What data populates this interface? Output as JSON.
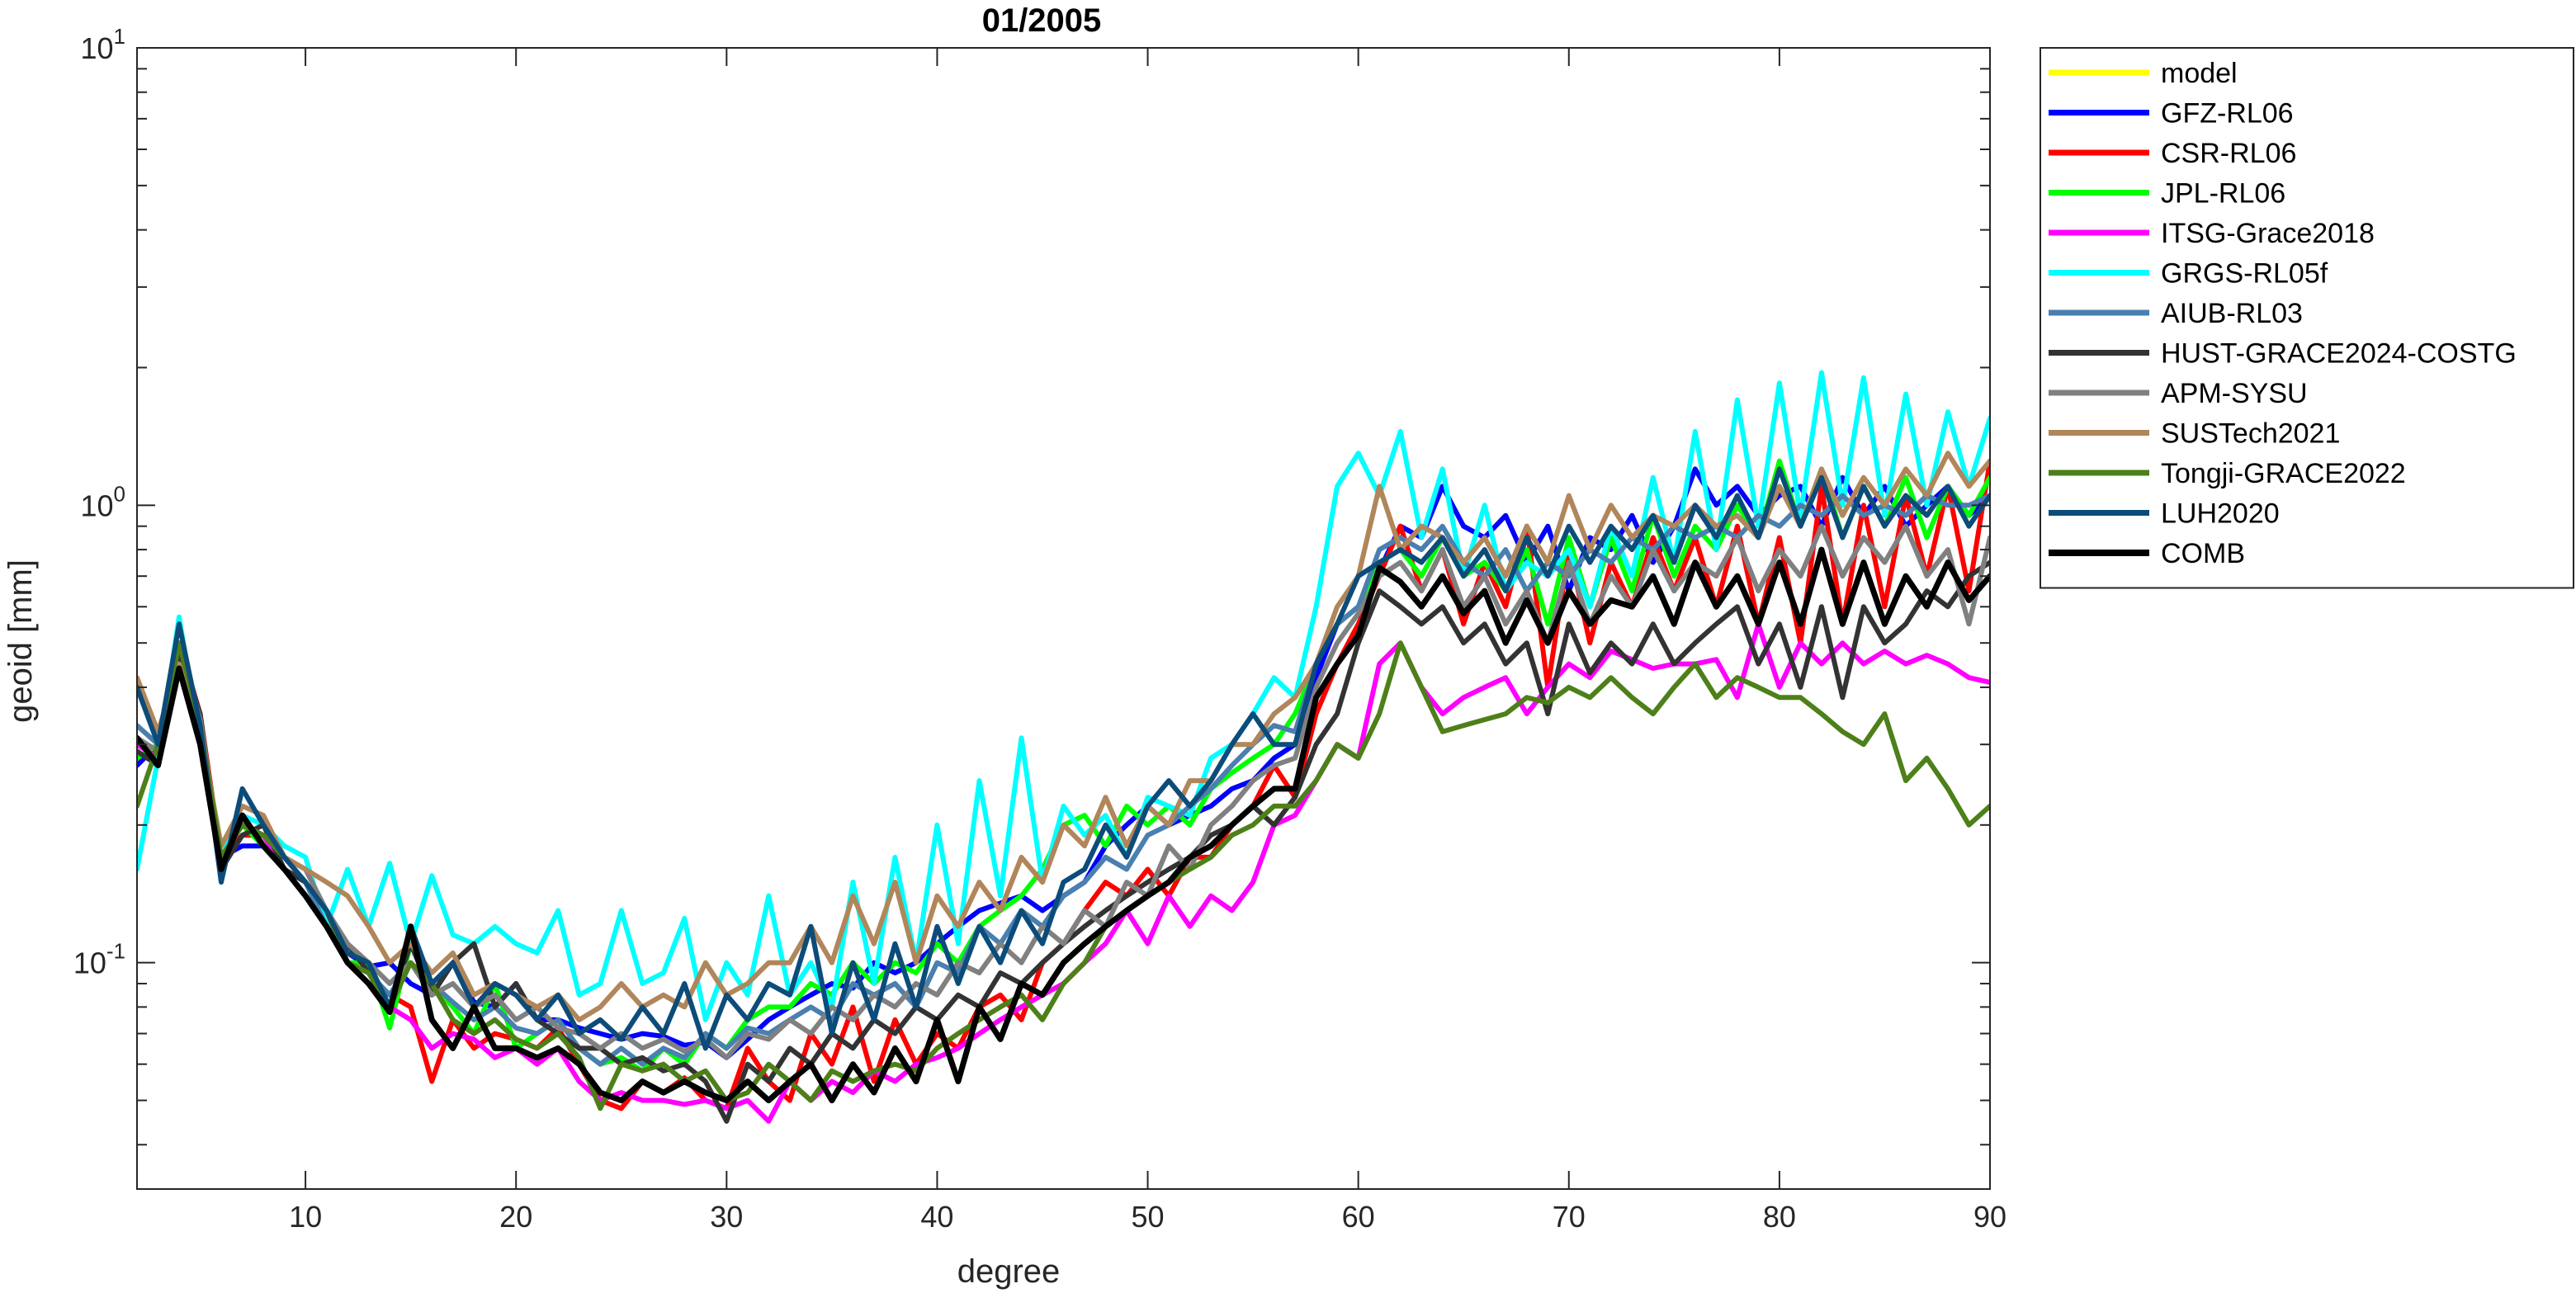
{
  "chart_data": {
    "type": "line",
    "title": "01/2005",
    "xlabel": "degree",
    "ylabel": "geoid [mm]",
    "xlim": [
      2,
      90
    ],
    "ylim": [
      0.032,
      10
    ],
    "yscale": "log",
    "grid": false,
    "legend_position": "outside-right-top",
    "x_ticks": [
      10,
      20,
      30,
      40,
      50,
      60,
      70,
      80,
      90
    ],
    "y_ticks": [
      {
        "value": 0.1,
        "base": "10",
        "exponent": "-1"
      },
      {
        "value": 1,
        "base": "10",
        "exponent": "0"
      },
      {
        "value": 10,
        "base": "10",
        "exponent": "1"
      }
    ],
    "series": [
      {
        "name": "model",
        "color": "#ffff00",
        "width": 6,
        "x_start": 2,
        "values": []
      },
      {
        "name": "GFZ-RL06",
        "color": "#0000ff",
        "width": 6,
        "x_start": 2,
        "values": [
          0.27,
          0.3,
          0.5,
          0.34,
          0.17,
          0.18,
          0.18,
          0.17,
          0.15,
          0.13,
          0.105,
          0.098,
          0.1,
          0.09,
          0.085,
          0.1,
          0.082,
          0.08,
          0.09,
          0.075,
          0.075,
          0.072,
          0.07,
          0.068,
          0.07,
          0.069,
          0.066,
          0.067,
          0.062,
          0.068,
          0.075,
          0.08,
          0.085,
          0.09,
          0.088,
          0.1,
          0.095,
          0.1,
          0.11,
          0.12,
          0.13,
          0.135,
          0.14,
          0.13,
          0.14,
          0.15,
          0.18,
          0.2,
          0.22,
          0.2,
          0.21,
          0.22,
          0.24,
          0.25,
          0.28,
          0.3,
          0.42,
          0.55,
          0.6,
          0.72,
          0.9,
          0.85,
          1.1,
          0.9,
          0.85,
          0.95,
          0.75,
          0.9,
          0.65,
          0.85,
          0.8,
          0.95,
          0.75,
          0.9,
          1.2,
          1.0,
          1.1,
          0.95,
          1.05,
          1.1,
          0.9,
          1.15,
          0.95,
          1.1,
          0.9,
          1.0,
          1.1,
          0.95,
          1.05
        ]
      },
      {
        "name": "CSR-RL06",
        "color": "#ff0000",
        "width": 6,
        "x_start": 2,
        "values": [
          0.3,
          0.28,
          0.5,
          0.35,
          0.17,
          0.19,
          0.19,
          0.16,
          0.14,
          0.12,
          0.1,
          0.09,
          0.085,
          0.08,
          0.055,
          0.075,
          0.065,
          0.07,
          0.068,
          0.065,
          0.072,
          0.06,
          0.05,
          0.048,
          0.055,
          0.052,
          0.056,
          0.05,
          0.048,
          0.065,
          0.055,
          0.05,
          0.07,
          0.06,
          0.08,
          0.055,
          0.075,
          0.06,
          0.07,
          0.065,
          0.08,
          0.085,
          0.075,
          0.1,
          0.11,
          0.13,
          0.15,
          0.14,
          0.16,
          0.14,
          0.17,
          0.17,
          0.2,
          0.22,
          0.27,
          0.23,
          0.35,
          0.45,
          0.55,
          0.7,
          0.9,
          0.65,
          0.8,
          0.55,
          0.75,
          0.6,
          0.9,
          0.4,
          0.8,
          0.5,
          0.75,
          0.6,
          0.85,
          0.65,
          0.85,
          0.6,
          0.9,
          0.55,
          0.85,
          0.5,
          1.1,
          0.55,
          1.0,
          0.6,
          1.05,
          0.7,
          1.1,
          0.65,
          1.25
        ]
      },
      {
        "name": "JPL-RL06",
        "color": "#00ff00",
        "width": 6,
        "x_start": 2,
        "values": [
          0.28,
          0.3,
          0.48,
          0.32,
          0.18,
          0.2,
          0.18,
          0.16,
          0.15,
          0.13,
          0.1,
          0.1,
          0.072,
          0.11,
          0.09,
          0.08,
          0.07,
          0.09,
          0.065,
          0.07,
          0.075,
          0.065,
          0.06,
          0.062,
          0.058,
          0.065,
          0.06,
          0.07,
          0.065,
          0.075,
          0.08,
          0.08,
          0.09,
          0.085,
          0.1,
          0.09,
          0.1,
          0.095,
          0.11,
          0.1,
          0.12,
          0.13,
          0.14,
          0.16,
          0.2,
          0.21,
          0.18,
          0.22,
          0.2,
          0.22,
          0.2,
          0.24,
          0.26,
          0.28,
          0.3,
          0.35,
          0.45,
          0.55,
          0.6,
          0.75,
          0.8,
          0.7,
          0.85,
          0.7,
          0.75,
          0.65,
          0.8,
          0.55,
          0.85,
          0.6,
          0.85,
          0.65,
          0.95,
          0.7,
          0.9,
          0.8,
          1.0,
          0.85,
          1.25,
          0.9,
          1.2,
          0.85,
          1.1,
          0.9,
          1.15,
          0.85,
          1.1,
          0.95,
          1.15
        ]
      },
      {
        "name": "ITSG-Grace2018",
        "color": "#ff00ff",
        "width": 6,
        "x_start": 2,
        "values": [
          0.3,
          0.28,
          0.48,
          0.33,
          0.17,
          0.2,
          0.19,
          0.16,
          0.15,
          0.13,
          0.1,
          0.09,
          0.08,
          0.075,
          0.065,
          0.07,
          0.068,
          0.062,
          0.065,
          0.06,
          0.065,
          0.055,
          0.05,
          0.052,
          0.05,
          0.05,
          0.049,
          0.05,
          0.048,
          0.05,
          0.045,
          0.055,
          0.05,
          0.055,
          0.052,
          0.058,
          0.055,
          0.06,
          0.062,
          0.065,
          0.07,
          0.075,
          0.08,
          0.085,
          0.09,
          0.1,
          0.11,
          0.13,
          0.11,
          0.14,
          0.12,
          0.14,
          0.13,
          0.15,
          0.2,
          0.21,
          0.25,
          0.3,
          0.28,
          0.45,
          0.5,
          0.4,
          0.35,
          0.38,
          0.4,
          0.42,
          0.35,
          0.4,
          0.45,
          0.42,
          0.48,
          0.46,
          0.44,
          0.45,
          0.45,
          0.46,
          0.38,
          0.55,
          0.4,
          0.5,
          0.45,
          0.5,
          0.45,
          0.48,
          0.45,
          0.47,
          0.45,
          0.42,
          0.41
        ]
      },
      {
        "name": "GRGS-RL05f",
        "color": "#00ffff",
        "width": 6,
        "x_start": 2,
        "values": [
          0.16,
          0.28,
          0.57,
          0.3,
          0.17,
          0.21,
          0.2,
          0.18,
          0.17,
          0.12,
          0.16,
          0.12,
          0.165,
          0.11,
          0.155,
          0.115,
          0.11,
          0.12,
          0.11,
          0.105,
          0.13,
          0.085,
          0.09,
          0.13,
          0.09,
          0.095,
          0.125,
          0.075,
          0.1,
          0.085,
          0.14,
          0.085,
          0.1,
          0.08,
          0.15,
          0.09,
          0.17,
          0.1,
          0.2,
          0.11,
          0.25,
          0.14,
          0.31,
          0.15,
          0.22,
          0.19,
          0.21,
          0.17,
          0.23,
          0.22,
          0.21,
          0.28,
          0.3,
          0.35,
          0.42,
          0.38,
          0.6,
          1.1,
          1.3,
          1.05,
          1.45,
          0.85,
          1.2,
          0.7,
          1.0,
          0.65,
          0.75,
          0.7,
          0.8,
          0.6,
          0.9,
          0.7,
          1.15,
          0.75,
          1.45,
          0.8,
          1.7,
          0.9,
          1.85,
          0.95,
          1.95,
          1.0,
          1.9,
          0.95,
          1.75,
          1.0,
          1.6,
          1.1,
          1.55
        ]
      },
      {
        "name": "AIUB-RL03",
        "color": "#4a7fb0",
        "width": 6,
        "x_start": 2,
        "values": [
          0.33,
          0.3,
          0.5,
          0.33,
          0.17,
          0.2,
          0.19,
          0.17,
          0.15,
          0.12,
          0.1,
          0.095,
          0.085,
          0.1,
          0.09,
          0.082,
          0.075,
          0.08,
          0.072,
          0.07,
          0.075,
          0.065,
          0.06,
          0.065,
          0.06,
          0.065,
          0.062,
          0.07,
          0.065,
          0.072,
          0.07,
          0.075,
          0.08,
          0.075,
          0.09,
          0.085,
          0.09,
          0.08,
          0.1,
          0.095,
          0.12,
          0.11,
          0.13,
          0.12,
          0.14,
          0.15,
          0.17,
          0.16,
          0.19,
          0.2,
          0.22,
          0.24,
          0.27,
          0.3,
          0.33,
          0.32,
          0.45,
          0.55,
          0.6,
          0.8,
          0.85,
          0.8,
          0.9,
          0.75,
          0.7,
          0.8,
          0.65,
          0.75,
          0.7,
          0.8,
          0.75,
          0.85,
          0.8,
          0.9,
          0.85,
          0.9,
          0.85,
          0.95,
          0.9,
          1.0,
          0.95,
          1.05,
          0.95,
          1.0,
          0.95,
          1.05,
          1.0,
          1.0,
          1.05
        ]
      },
      {
        "name": "HUST-GRACE2024-COSTG",
        "color": "#333333",
        "width": 6,
        "x_start": 2,
        "values": [
          0.29,
          0.27,
          0.48,
          0.35,
          0.16,
          0.19,
          0.2,
          0.16,
          0.15,
          0.13,
          0.11,
          0.095,
          0.08,
          0.11,
          0.085,
          0.1,
          0.11,
          0.08,
          0.09,
          0.075,
          0.07,
          0.065,
          0.065,
          0.06,
          0.062,
          0.058,
          0.06,
          0.055,
          0.045,
          0.06,
          0.055,
          0.065,
          0.06,
          0.07,
          0.065,
          0.075,
          0.07,
          0.08,
          0.075,
          0.085,
          0.08,
          0.095,
          0.09,
          0.1,
          0.11,
          0.12,
          0.13,
          0.14,
          0.15,
          0.16,
          0.17,
          0.19,
          0.2,
          0.22,
          0.2,
          0.23,
          0.3,
          0.35,
          0.5,
          0.65,
          0.6,
          0.55,
          0.6,
          0.5,
          0.55,
          0.45,
          0.5,
          0.35,
          0.55,
          0.43,
          0.5,
          0.45,
          0.55,
          0.45,
          0.5,
          0.55,
          0.6,
          0.45,
          0.55,
          0.4,
          0.6,
          0.38,
          0.6,
          0.5,
          0.55,
          0.65,
          0.6,
          0.7,
          0.75
        ]
      },
      {
        "name": "APM-SYSU",
        "color": "#808080",
        "width": 6,
        "x_start": 2,
        "values": [
          0.31,
          0.29,
          0.5,
          0.34,
          0.17,
          0.2,
          0.19,
          0.17,
          0.16,
          0.13,
          0.11,
          0.1,
          0.09,
          0.1,
          0.085,
          0.09,
          0.08,
          0.085,
          0.075,
          0.08,
          0.072,
          0.07,
          0.065,
          0.07,
          0.065,
          0.068,
          0.064,
          0.068,
          0.062,
          0.07,
          0.068,
          0.075,
          0.07,
          0.08,
          0.075,
          0.085,
          0.08,
          0.09,
          0.085,
          0.1,
          0.095,
          0.11,
          0.1,
          0.12,
          0.11,
          0.13,
          0.12,
          0.15,
          0.14,
          0.18,
          0.16,
          0.2,
          0.22,
          0.25,
          0.27,
          0.28,
          0.4,
          0.5,
          0.58,
          0.7,
          0.75,
          0.65,
          0.8,
          0.6,
          0.7,
          0.55,
          0.65,
          0.5,
          0.75,
          0.55,
          0.7,
          0.6,
          0.8,
          0.65,
          0.75,
          0.7,
          0.85,
          0.65,
          0.8,
          0.7,
          0.9,
          0.7,
          0.85,
          0.75,
          0.9,
          0.7,
          0.8,
          0.55,
          0.85
        ]
      },
      {
        "name": "SUSTech2021",
        "color": "#b0865a",
        "width": 6,
        "x_start": 2,
        "values": [
          0.42,
          0.32,
          0.45,
          0.32,
          0.18,
          0.22,
          0.21,
          0.17,
          0.16,
          0.15,
          0.14,
          0.12,
          0.1,
          0.11,
          0.095,
          0.105,
          0.085,
          0.09,
          0.085,
          0.08,
          0.085,
          0.075,
          0.08,
          0.09,
          0.08,
          0.085,
          0.08,
          0.1,
          0.085,
          0.09,
          0.1,
          0.1,
          0.12,
          0.1,
          0.14,
          0.11,
          0.15,
          0.1,
          0.14,
          0.12,
          0.15,
          0.13,
          0.17,
          0.15,
          0.2,
          0.18,
          0.23,
          0.18,
          0.22,
          0.2,
          0.25,
          0.25,
          0.3,
          0.3,
          0.35,
          0.38,
          0.45,
          0.6,
          0.7,
          1.1,
          0.8,
          0.9,
          0.85,
          0.75,
          0.85,
          0.7,
          0.9,
          0.75,
          1.05,
          0.8,
          1.0,
          0.85,
          0.95,
          0.9,
          1.0,
          0.9,
          0.95,
          0.85,
          1.1,
          0.9,
          1.2,
          0.95,
          1.15,
          1.0,
          1.2,
          1.05,
          1.3,
          1.1,
          1.25
        ]
      },
      {
        "name": "Tongji-GRACE2022",
        "color": "#4d8019",
        "width": 6,
        "x_start": 2,
        "values": [
          0.22,
          0.3,
          0.5,
          0.33,
          0.17,
          0.2,
          0.19,
          0.17,
          0.15,
          0.13,
          0.1,
          0.095,
          0.08,
          0.1,
          0.09,
          0.075,
          0.07,
          0.075,
          0.068,
          0.065,
          0.07,
          0.062,
          0.048,
          0.06,
          0.058,
          0.06,
          0.055,
          0.058,
          0.05,
          0.052,
          0.06,
          0.055,
          0.05,
          0.058,
          0.055,
          0.058,
          0.06,
          0.058,
          0.065,
          0.07,
          0.075,
          0.08,
          0.085,
          0.075,
          0.09,
          0.1,
          0.12,
          0.13,
          0.14,
          0.15,
          0.16,
          0.17,
          0.19,
          0.2,
          0.22,
          0.22,
          0.25,
          0.3,
          0.28,
          0.35,
          0.5,
          0.4,
          0.32,
          0.33,
          0.34,
          0.35,
          0.38,
          0.37,
          0.4,
          0.38,
          0.42,
          0.38,
          0.35,
          0.4,
          0.45,
          0.38,
          0.42,
          0.4,
          0.38,
          0.38,
          0.35,
          0.32,
          0.3,
          0.35,
          0.25,
          0.28,
          0.24,
          0.2,
          0.22
        ]
      },
      {
        "name": "LUH2020",
        "color": "#0c4c7a",
        "width": 6,
        "x_start": 2,
        "values": [
          0.4,
          0.3,
          0.55,
          0.33,
          0.15,
          0.24,
          0.2,
          0.17,
          0.15,
          0.13,
          0.105,
          0.1,
          0.08,
          0.12,
          0.09,
          0.1,
          0.08,
          0.09,
          0.085,
          0.075,
          0.085,
          0.07,
          0.075,
          0.068,
          0.08,
          0.07,
          0.09,
          0.065,
          0.085,
          0.075,
          0.09,
          0.085,
          0.12,
          0.07,
          0.1,
          0.075,
          0.11,
          0.08,
          0.12,
          0.09,
          0.12,
          0.1,
          0.13,
          0.11,
          0.15,
          0.16,
          0.2,
          0.17,
          0.22,
          0.25,
          0.22,
          0.25,
          0.3,
          0.35,
          0.3,
          0.3,
          0.45,
          0.55,
          0.7,
          0.75,
          0.8,
          0.75,
          0.85,
          0.7,
          0.8,
          0.65,
          0.85,
          0.7,
          0.9,
          0.75,
          0.9,
          0.8,
          0.95,
          0.75,
          1.0,
          0.85,
          1.05,
          0.85,
          1.2,
          0.9,
          1.15,
          0.85,
          1.1,
          0.9,
          1.05,
          0.95,
          1.1,
          0.9,
          1.05
        ]
      },
      {
        "name": "COMB",
        "color": "#000000",
        "width": 7,
        "x_start": 2,
        "values": [
          0.31,
          0.27,
          0.44,
          0.3,
          0.16,
          0.21,
          0.18,
          0.16,
          0.14,
          0.12,
          0.1,
          0.09,
          0.078,
          0.12,
          0.075,
          0.065,
          0.08,
          0.065,
          0.065,
          0.062,
          0.065,
          0.06,
          0.052,
          0.05,
          0.055,
          0.052,
          0.055,
          0.052,
          0.05,
          0.055,
          0.05,
          0.055,
          0.06,
          0.05,
          0.06,
          0.052,
          0.065,
          0.055,
          0.075,
          0.055,
          0.08,
          0.068,
          0.09,
          0.085,
          0.1,
          0.11,
          0.12,
          0.13,
          0.14,
          0.15,
          0.17,
          0.18,
          0.2,
          0.22,
          0.24,
          0.24,
          0.38,
          0.45,
          0.52,
          0.73,
          0.68,
          0.6,
          0.7,
          0.58,
          0.65,
          0.5,
          0.62,
          0.5,
          0.65,
          0.55,
          0.62,
          0.6,
          0.7,
          0.55,
          0.75,
          0.6,
          0.7,
          0.55,
          0.75,
          0.55,
          0.8,
          0.55,
          0.75,
          0.55,
          0.7,
          0.6,
          0.75,
          0.62,
          0.7
        ]
      }
    ]
  }
}
